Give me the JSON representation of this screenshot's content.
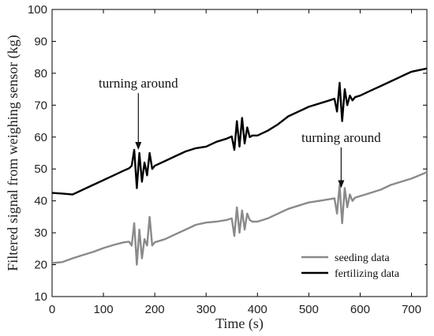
{
  "chart_data": {
    "type": "line",
    "xlabel": "Time (s)",
    "ylabel": "Filtered signal from weighing sensor (kg)",
    "xlim": [
      0,
      730
    ],
    "ylim": [
      10,
      100
    ],
    "xticks": [
      0,
      100,
      200,
      300,
      400,
      500,
      600,
      700
    ],
    "yticks": [
      10,
      20,
      30,
      40,
      50,
      60,
      70,
      80,
      90,
      100
    ],
    "grid": false,
    "legend_position": "bottom-right",
    "annotations": [
      {
        "text": "turning around",
        "x": 168,
        "y": 75.5,
        "arrow_to": [
          168,
          56
        ]
      },
      {
        "text": "turning around",
        "x": 563,
        "y": 58.5,
        "arrow_to": [
          563,
          44
        ]
      }
    ],
    "series": [
      {
        "name": "seeding data",
        "color": "#8a8a8a",
        "x": [
          0,
          20,
          40,
          60,
          80,
          100,
          120,
          140,
          150,
          155,
          160,
          165,
          170,
          175,
          180,
          185,
          190,
          195,
          200,
          220,
          240,
          260,
          280,
          300,
          320,
          340,
          350,
          355,
          360,
          365,
          370,
          375,
          380,
          385,
          390,
          400,
          420,
          440,
          460,
          480,
          500,
          520,
          540,
          550,
          555,
          560,
          565,
          570,
          575,
          580,
          585,
          590,
          600,
          620,
          640,
          660,
          680,
          700,
          730
        ],
        "y": [
          20.5,
          20.8,
          22,
          23,
          24,
          25.2,
          26.2,
          27,
          27.2,
          26,
          33,
          20,
          31,
          22,
          28,
          26,
          35,
          26,
          27,
          28,
          29.5,
          31,
          32.5,
          33.2,
          33.5,
          34,
          34.5,
          29,
          38,
          30,
          37,
          31,
          36,
          34,
          33.5,
          33.5,
          34.5,
          36,
          37.5,
          38.5,
          39.5,
          40,
          40.5,
          40.8,
          36,
          45,
          33,
          44,
          38,
          42,
          40,
          41,
          41.5,
          42.5,
          43.5,
          45,
          46,
          47,
          49
        ]
      },
      {
        "name": "fertilizing data",
        "color": "#000000",
        "x": [
          0,
          20,
          40,
          60,
          80,
          100,
          120,
          140,
          150,
          155,
          160,
          165,
          170,
          175,
          180,
          185,
          190,
          195,
          200,
          220,
          240,
          260,
          280,
          300,
          320,
          340,
          350,
          355,
          360,
          365,
          370,
          375,
          380,
          385,
          390,
          400,
          420,
          440,
          460,
          480,
          500,
          520,
          540,
          550,
          555,
          560,
          565,
          570,
          575,
          580,
          585,
          590,
          600,
          620,
          640,
          660,
          680,
          700,
          730
        ],
        "y": [
          42.5,
          42.3,
          42,
          43.5,
          45,
          46.5,
          48,
          49.5,
          50.2,
          51,
          56,
          44,
          55,
          46,
          52,
          48,
          55,
          50,
          51,
          52.5,
          54,
          55.5,
          56.5,
          57,
          58.5,
          59.5,
          60.2,
          56,
          65,
          57,
          66,
          58,
          63,
          60,
          60.5,
          60.5,
          62,
          64,
          66.5,
          68,
          69.5,
          70.5,
          71.5,
          72,
          68,
          77,
          65,
          75,
          70,
          73,
          71.5,
          72.5,
          73,
          74.5,
          76,
          77.5,
          79,
          80.5,
          81.5
        ]
      }
    ]
  }
}
